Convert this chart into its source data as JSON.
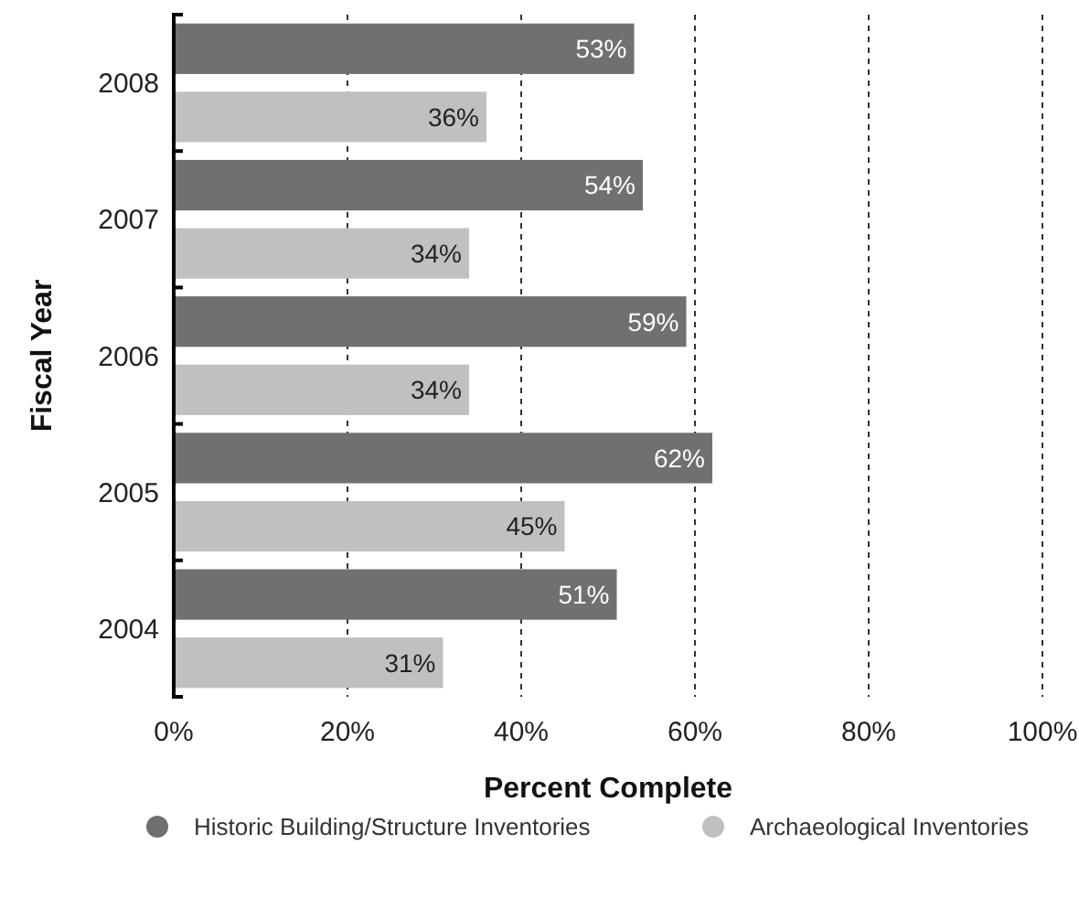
{
  "chart_data": {
    "type": "bar",
    "orientation": "horizontal",
    "xlabel": "Percent Complete",
    "ylabel": "Fiscal Year",
    "categories": [
      "2008",
      "2007",
      "2006",
      "2005",
      "2004"
    ],
    "series": [
      {
        "name": "Historic Building/Structure Inventories",
        "color": "#707070",
        "values": [
          53,
          54,
          59,
          62,
          51
        ],
        "value_labels": [
          "53%",
          "54%",
          "59%",
          "62%",
          "51%"
        ]
      },
      {
        "name": "Archaeological Inventories",
        "color": "#c0c0c0",
        "values": [
          36,
          34,
          34,
          45,
          31
        ],
        "value_labels": [
          "36%",
          "34%",
          "34%",
          "45%",
          "31%"
        ]
      }
    ],
    "xlim": [
      0,
      100
    ],
    "xticks": [
      {
        "value": 0,
        "label": "0%"
      },
      {
        "value": 20,
        "label": "20%"
      },
      {
        "value": 40,
        "label": "40%"
      },
      {
        "value": 60,
        "label": "60%"
      },
      {
        "value": 80,
        "label": "80%"
      },
      {
        "value": 100,
        "label": "100%"
      }
    ],
    "grid": "x",
    "legend": "bottom"
  }
}
